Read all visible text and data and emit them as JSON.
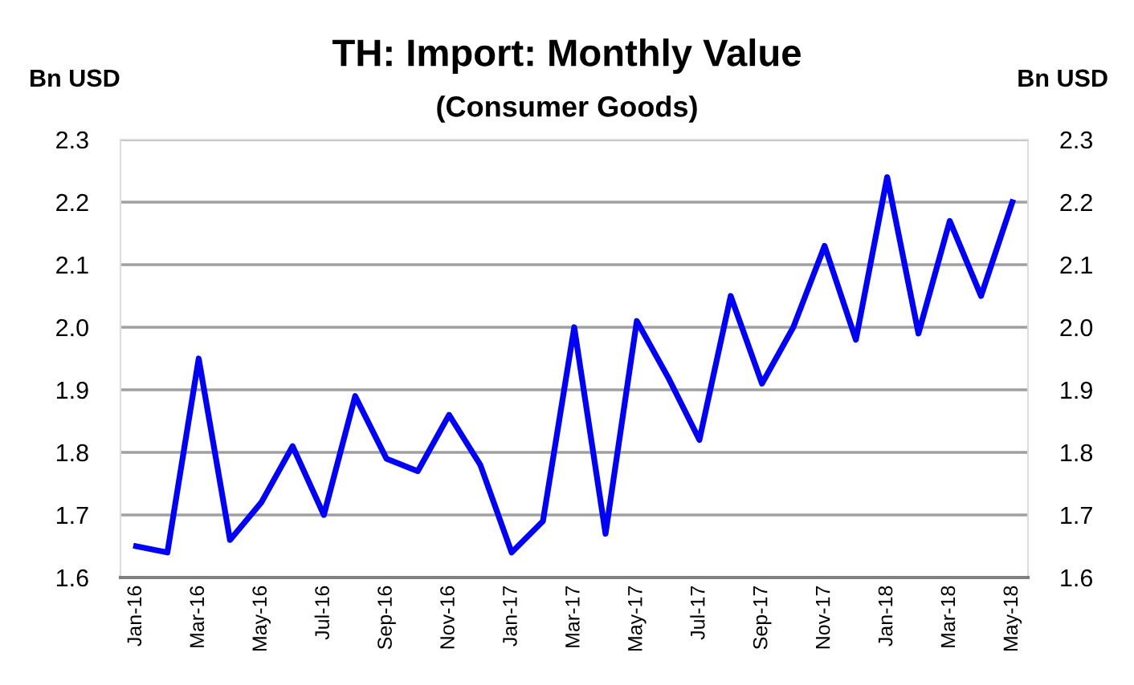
{
  "chart_data": {
    "type": "line",
    "title": "TH: Import: Monthly Value",
    "subtitle": "(Consumer Goods)",
    "ylabel": "Bn USD",
    "y2label": "Bn USD",
    "categories": [
      "Jan-16",
      null,
      "Mar-16",
      null,
      "May-16",
      null,
      "Jul-16",
      null,
      "Sep-16",
      null,
      "Nov-16",
      null,
      "Jan-17",
      null,
      "Mar-17",
      null,
      "May-17",
      null,
      "Jul-17",
      null,
      "Sep-17",
      null,
      "Nov-17",
      null,
      "Jan-18",
      null,
      "Mar-18",
      null,
      "May-18"
    ],
    "series": [
      {
        "color": "#0000ff",
        "values": [
          1.65,
          1.64,
          1.95,
          1.66,
          1.72,
          1.81,
          1.7,
          1.89,
          1.79,
          1.77,
          1.86,
          1.78,
          1.64,
          1.69,
          2.0,
          1.67,
          2.01,
          1.92,
          1.82,
          2.05,
          1.91,
          2.0,
          2.13,
          1.98,
          2.24,
          1.99,
          2.17,
          2.05,
          2.2
        ]
      }
    ],
    "ylim": [
      1.6,
      2.3
    ],
    "yticks": [
      1.6,
      1.7,
      1.8,
      1.9,
      {
        "value": 2,
        "label": "2.0"
      },
      2.1,
      2.2,
      2.3
    ],
    "y2lim": [
      1.6,
      2.3
    ],
    "y2ticks": [
      1.6,
      1.7,
      1.8,
      1.9,
      {
        "value": 2,
        "label": "2.0"
      },
      2.1,
      2.2,
      2.3
    ],
    "grid": "y",
    "marker": "none",
    "line_style": "solid"
  }
}
